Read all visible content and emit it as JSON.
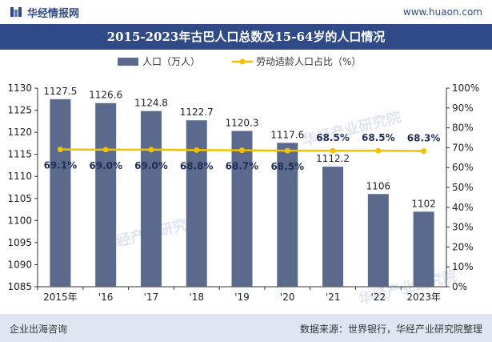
{
  "header": {
    "brand": "华经情报网",
    "site": "www.huaon.com"
  },
  "footer": {
    "left": "企业出海咨询",
    "right": "数据来源：世界银行，华经产业研究院整理"
  },
  "watermark": "华经产业研究院",
  "colors": {
    "bar": "#5b6a8c",
    "line": "#f2c200",
    "title_bg": "#2f4a86",
    "footer_bg": "#dfe6f2"
  },
  "chart_data": {
    "type": "bar",
    "title": "2015-2023年古巴人口总数及15-64岁的人口情况",
    "categories": [
      "2015年",
      "'16",
      "'17",
      "'18",
      "'19",
      "'20",
      "'21",
      "'22",
      "2023年"
    ],
    "series": [
      {
        "name": "人口（万人）",
        "type": "bar",
        "axis": "left",
        "values": [
          1127.5,
          1126.6,
          1124.8,
          1122.7,
          1120.3,
          1117.6,
          1112.2,
          1106,
          1102
        ],
        "labels": [
          "1127.5",
          "1126.6",
          "1124.8",
          "1122.7",
          "1120.3",
          "1117.6",
          "1112.2",
          "1106",
          "1102"
        ]
      },
      {
        "name": "劳动适龄人口占比（%）",
        "type": "line",
        "axis": "right",
        "values": [
          69.1,
          69.0,
          69.0,
          68.8,
          68.7,
          68.5,
          68.5,
          68.5,
          68.3
        ],
        "labels": [
          "69.1%",
          "69.0%",
          "69.0%",
          "68.8%",
          "68.7%",
          "68.5%",
          "68.5%",
          "68.5%",
          "68.3%"
        ]
      }
    ],
    "y_left": {
      "min": 1085,
      "max": 1130,
      "ticks": [
        "1085",
        "1090",
        "1095",
        "1100",
        "1105",
        "1110",
        "1115",
        "1120",
        "1125",
        "1130"
      ]
    },
    "y_right": {
      "min": 0,
      "max": 100,
      "ticks": [
        "0%",
        "10%",
        "20%",
        "30%",
        "40%",
        "50%",
        "60%",
        "70%",
        "80%",
        "90%",
        "100%"
      ]
    },
    "grid": false,
    "legend_position": "top-center"
  }
}
